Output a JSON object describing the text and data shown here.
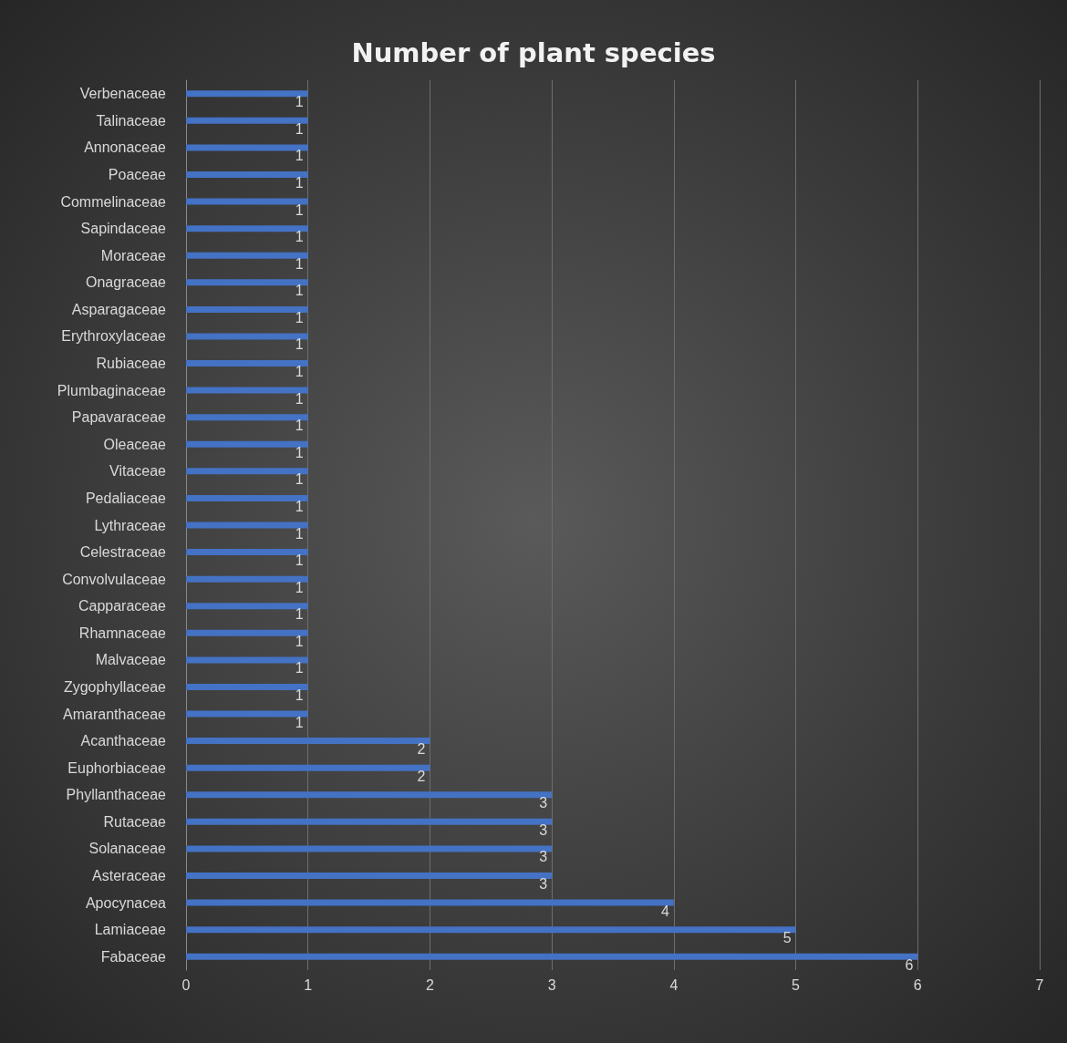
{
  "chart_data": {
    "type": "bar",
    "orientation": "horizontal",
    "title": "Number of plant species",
    "categories": [
      "Verbenaceae",
      "Talinaceae",
      "Annonaceae",
      "Poaceae",
      "Commelinaceae",
      "Sapindaceae",
      "Moraceae",
      "Onagraceae",
      "Asparagaceae",
      "Erythroxylaceae",
      "Rubiaceae",
      "Plumbaginaceae",
      "Papavaraceae",
      "Oleaceae",
      "Vitaceae",
      "Pedaliaceae",
      "Lythraceae",
      "Celestraceae",
      "Convolvulaceae",
      "Capparaceae",
      "Rhamnaceae",
      "Malvaceae",
      "Zygophyllaceae",
      "Amaranthaceae",
      "Acanthaceae",
      "Euphorbiaceae",
      "Phyllanthaceae",
      "Rutaceae",
      "Solanaceae",
      "Asteraceae",
      "Apocynacea",
      "Lamiaceae",
      "Fabaceae"
    ],
    "values": [
      1,
      1,
      1,
      1,
      1,
      1,
      1,
      1,
      1,
      1,
      1,
      1,
      1,
      1,
      1,
      1,
      1,
      1,
      1,
      1,
      1,
      1,
      1,
      1,
      2,
      2,
      3,
      3,
      3,
      3,
      4,
      5,
      6
    ],
    "color": "#4472c4",
    "xlim": [
      0,
      7
    ],
    "xticks": [
      0,
      1,
      2,
      3,
      4,
      5,
      6,
      7
    ],
    "grid": "x",
    "data_labels": true
  }
}
